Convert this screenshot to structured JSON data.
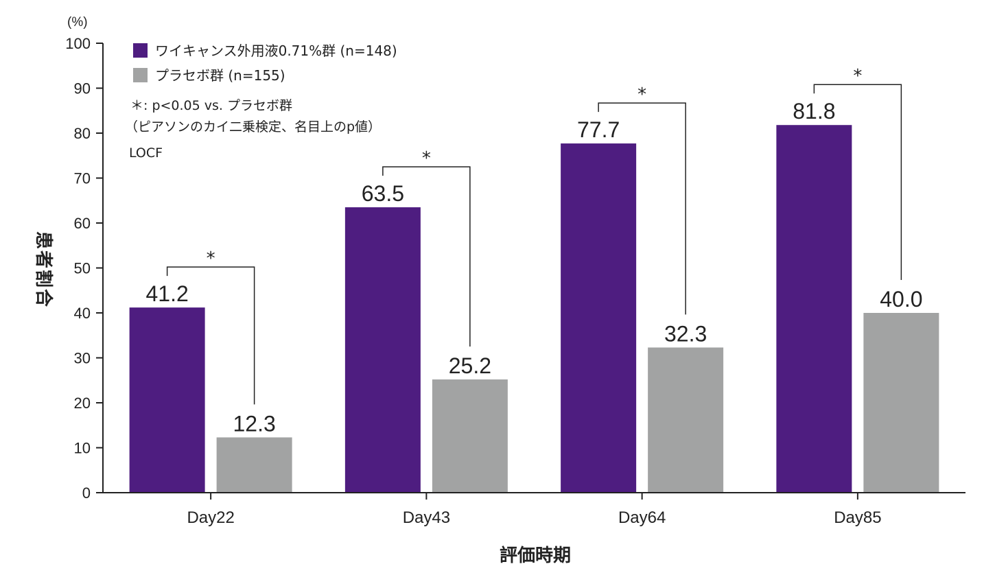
{
  "chart_data": {
    "type": "bar",
    "categories": [
      "Day22",
      "Day43",
      "Day64",
      "Day85"
    ],
    "series": [
      {
        "name": "ワイキャンス外用液0.71%群 (n=148)",
        "color": "#4e1d80",
        "values": [
          41.2,
          63.5,
          77.7,
          81.8
        ]
      },
      {
        "name": "プラセボ群 (n=155)",
        "color": "#a2a3a3",
        "values": [
          12.3,
          25.2,
          32.3,
          40.0
        ]
      }
    ],
    "value_labels": [
      [
        "41.2",
        "63.5",
        "77.7",
        "81.8"
      ],
      [
        "12.3",
        "25.2",
        "32.3",
        "40.0"
      ]
    ],
    "xlabel": "評価時期",
    "ylabel": "患者割合",
    "yunit": "(%)",
    "ylim": [
      0,
      100
    ],
    "yticks": [
      0,
      10,
      20,
      30,
      40,
      50,
      60,
      70,
      80,
      90,
      100
    ],
    "significance_marker": "*",
    "significant": [
      true,
      true,
      true,
      true
    ],
    "notes": [
      "＊: p<0.05 vs. プラセボ群",
      "（ピアソンのカイ二乗検定、名目上のp値）",
      "LOCF"
    ],
    "legend_position": "top-left",
    "grid": false
  }
}
